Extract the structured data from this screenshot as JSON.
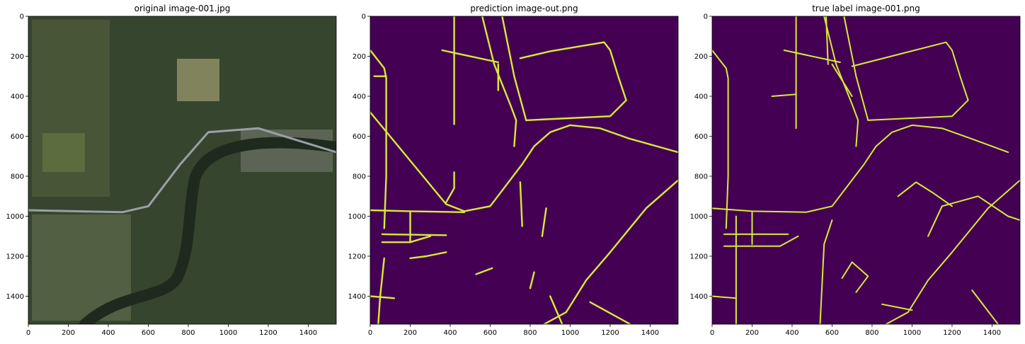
{
  "chart_data": [
    {
      "type": "image",
      "title": "original image-001.jpg",
      "xticks": [
        0,
        200,
        400,
        600,
        800,
        1000,
        1200,
        1400
      ],
      "yticks": [
        0,
        200,
        400,
        600,
        800,
        1000,
        1200,
        1400
      ],
      "xlim": [
        0,
        1540
      ],
      "ylim": [
        1540,
        0
      ],
      "content": "satellite photo"
    },
    {
      "type": "image",
      "title": "prediction image-out.png",
      "xticks": [
        0,
        200,
        400,
        600,
        800,
        1000,
        1200,
        1400
      ],
      "yticks": [
        0,
        200,
        400,
        600,
        800,
        1000,
        1200,
        1400
      ],
      "xlim": [
        0,
        1540
      ],
      "ylim": [
        1540,
        0
      ],
      "content": "road mask"
    },
    {
      "type": "image",
      "title": "true label image-001.png",
      "xticks": [
        0,
        200,
        400,
        600,
        800,
        1000,
        1200,
        1400
      ],
      "yticks": [
        0,
        200,
        400,
        600,
        800,
        1000,
        1200,
        1400
      ],
      "xlim": [
        0,
        1540
      ],
      "ylim": [
        1540,
        0
      ],
      "content": "road mask"
    }
  ],
  "colors": {
    "mask_background": "#440154",
    "mask_road": "#d9e83a",
    "photo_forest": "#36452e",
    "photo_field": "#5b6a3f",
    "photo_river": "#1f2a1f",
    "photo_road": "#9aa0a6"
  }
}
